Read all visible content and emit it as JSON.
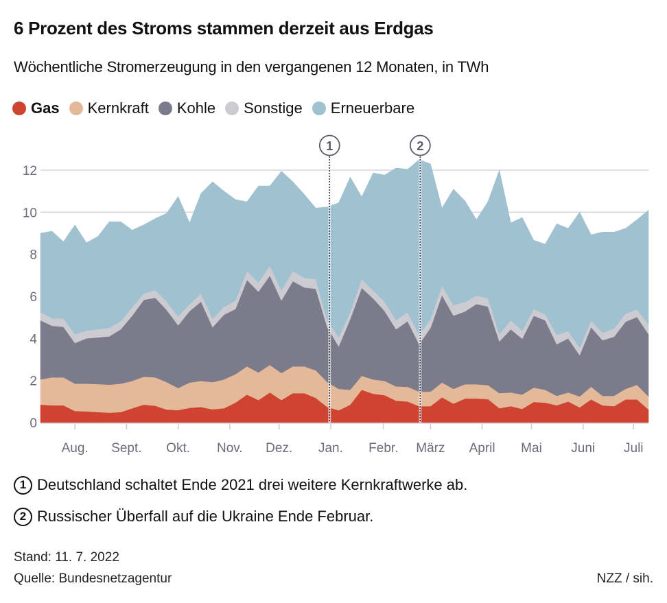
{
  "header": {
    "title": "6 Prozent des Stroms stammen derzeit aus Erdgas",
    "subtitle": "Wöchentliche Stromerzeugung in den vergangenen 12 Monaten, in TWh"
  },
  "legend": [
    {
      "label": "Gas",
      "color": "#cf4431",
      "bold": true
    },
    {
      "label": "Kernkraft",
      "color": "#e4b999",
      "bold": false
    },
    {
      "label": "Kohle",
      "color": "#7c7b8c",
      "bold": false
    },
    {
      "label": "Sonstige",
      "color": "#cbcbd1",
      "bold": false
    },
    {
      "label": "Erneuerbare",
      "color": "#9fc1d0",
      "bold": false
    }
  ],
  "annotations": [
    {
      "number": "1",
      "week": 25.2,
      "text": "Deutschland schaltet Ende 2021 drei weitere Kernkraftwerke ab."
    },
    {
      "number": "2",
      "week": 33.1,
      "text": "Russischer Überfall auf die Ukraine Ende Februar."
    }
  ],
  "footer": {
    "stand": "Stand: 11. 7. 2022",
    "source": "Quelle: Bundesnetzagentur",
    "credit": "NZZ / sih."
  },
  "chart_data": {
    "type": "area",
    "stacked": true,
    "title": "6 Prozent des Stroms stammen derzeit aus Erdgas",
    "subtitle": "Wöchentliche Stromerzeugung in den vergangenen 12 Monaten, in TWh",
    "xlabel": "",
    "ylabel": "TWh",
    "ylim": [
      0,
      12
    ],
    "yticks": [
      0,
      2,
      4,
      6,
      8,
      10,
      12
    ],
    "grid": true,
    "legend_position": "top-left",
    "x_weeks": 54,
    "xticks": [
      {
        "label": "Aug.",
        "week": 3.0
      },
      {
        "label": "Sept.",
        "week": 7.5
      },
      {
        "label": "Okt.",
        "week": 12.0
      },
      {
        "label": "Nov.",
        "week": 16.5
      },
      {
        "label": "Dez.",
        "week": 20.8
      },
      {
        "label": "Jan.",
        "week": 25.3
      },
      {
        "label": "Febr.",
        "week": 29.9
      },
      {
        "label": "März",
        "week": 34.0
      },
      {
        "label": "April",
        "week": 38.5
      },
      {
        "label": "Mai",
        "week": 42.8
      },
      {
        "label": "Juni",
        "week": 47.3
      },
      {
        "label": "Juli",
        "week": 51.7
      }
    ],
    "series": [
      {
        "name": "Gas",
        "color": "#cf4431",
        "values": [
          0.85,
          0.82,
          0.82,
          0.55,
          0.53,
          0.5,
          0.47,
          0.5,
          0.68,
          0.85,
          0.8,
          0.62,
          0.59,
          0.7,
          0.74,
          0.63,
          0.68,
          0.95,
          1.33,
          1.07,
          1.43,
          1.07,
          1.4,
          1.4,
          1.17,
          0.74,
          0.58,
          0.85,
          1.56,
          1.37,
          1.3,
          1.04,
          1.0,
          0.78,
          0.78,
          1.2,
          0.9,
          1.14,
          1.14,
          1.12,
          0.68,
          0.78,
          0.65,
          0.98,
          0.95,
          0.82,
          1.0,
          0.72,
          1.1,
          0.82,
          0.78,
          1.1,
          1.1,
          0.62
        ]
      },
      {
        "name": "Kernkraft",
        "color": "#e4b999",
        "values": [
          1.2,
          1.33,
          1.33,
          1.3,
          1.32,
          1.33,
          1.33,
          1.35,
          1.3,
          1.33,
          1.35,
          1.3,
          1.05,
          1.2,
          1.24,
          1.29,
          1.37,
          1.35,
          1.34,
          1.31,
          1.31,
          1.28,
          1.27,
          1.27,
          1.31,
          1.18,
          1.02,
          0.71,
          0.66,
          0.68,
          0.68,
          0.68,
          0.7,
          0.69,
          0.69,
          0.7,
          0.7,
          0.68,
          0.68,
          0.66,
          0.72,
          0.65,
          0.68,
          0.68,
          0.61,
          0.45,
          0.43,
          0.52,
          0.6,
          0.45,
          0.49,
          0.5,
          0.69,
          0.62
        ]
      },
      {
        "name": "Kohle",
        "color": "#7c7b8c",
        "values": [
          2.81,
          2.45,
          2.4,
          1.93,
          2.15,
          2.22,
          2.3,
          2.58,
          3.1,
          3.65,
          3.78,
          3.43,
          2.98,
          3.4,
          3.77,
          2.61,
          3.08,
          3.1,
          4.11,
          3.84,
          4.24,
          3.45,
          4.05,
          3.75,
          3.88,
          2.61,
          2.02,
          3.36,
          4.18,
          3.85,
          3.32,
          2.71,
          3.12,
          2.25,
          3.03,
          4.16,
          3.48,
          3.46,
          3.81,
          3.74,
          2.45,
          3.0,
          2.65,
          3.42,
          3.3,
          2.45,
          2.57,
          1.96,
          2.83,
          2.64,
          2.81,
          3.19,
          3.23,
          2.96
        ]
      },
      {
        "name": "Sonstige",
        "color": "#cbcbd1",
        "values": [
          0.39,
          0.35,
          0.4,
          0.42,
          0.37,
          0.38,
          0.4,
          0.39,
          0.4,
          0.3,
          0.37,
          0.4,
          0.43,
          0.33,
          0.38,
          0.4,
          0.37,
          0.4,
          0.42,
          0.43,
          0.47,
          0.48,
          0.48,
          0.46,
          0.46,
          0.33,
          0.43,
          0.33,
          0.42,
          0.38,
          0.44,
          0.43,
          0.43,
          0.45,
          0.42,
          0.44,
          0.5,
          0.46,
          0.4,
          0.4,
          0.35,
          0.43,
          0.39,
          0.32,
          0.29,
          0.45,
          0.34,
          0.35,
          0.33,
          0.36,
          0.39,
          0.39,
          0.36,
          0.46
        ]
      },
      {
        "name": "Erneuerbare",
        "color": "#9fc1d0",
        "values": [
          3.75,
          4.15,
          3.65,
          5.2,
          4.18,
          4.42,
          5.05,
          4.73,
          3.67,
          3.27,
          3.4,
          4.2,
          5.7,
          3.87,
          4.77,
          6.52,
          5.5,
          4.8,
          3.3,
          4.6,
          3.8,
          5.67,
          4.25,
          3.97,
          3.38,
          5.39,
          6.4,
          6.42,
          3.91,
          5.59,
          6.03,
          7.24,
          6.79,
          8.33,
          7.38,
          3.7,
          5.52,
          4.81,
          3.62,
          4.58,
          7.8,
          4.64,
          5.38,
          3.27,
          3.33,
          5.28,
          4.89,
          6.45,
          4.07,
          4.79,
          4.59,
          4.05,
          4.27,
          5.44
        ]
      }
    ]
  }
}
